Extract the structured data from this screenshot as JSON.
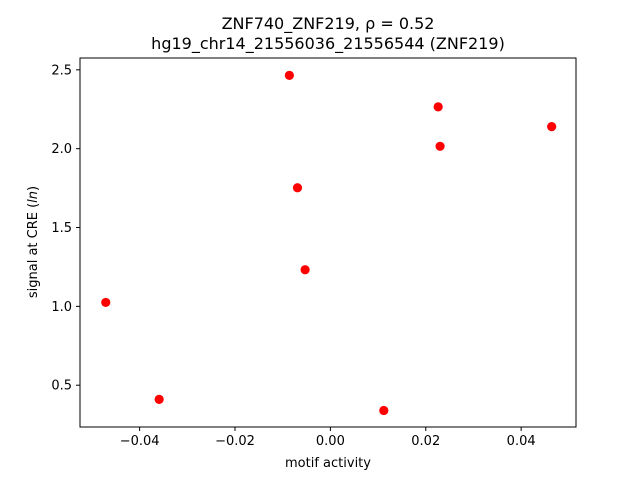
{
  "chart_data": {
    "type": "scatter",
    "title_line1": "ZNF740_ZNF219, ρ = 0.52",
    "title_line2": "hg19_chr14_21556036_21556544 (ZNF219)",
    "xlabel": "motif activity",
    "ylabel": "signal at CRE (ln)",
    "xlim": [
      -0.0525,
      0.0515
    ],
    "ylim": [
      0.235,
      2.575
    ],
    "xticks": [
      -0.04,
      -0.02,
      0.0,
      0.02,
      0.04
    ],
    "xtick_labels": [
      "−0.04",
      "−0.02",
      "0.00",
      "0.02",
      "0.04"
    ],
    "yticks": [
      0.5,
      1.0,
      1.5,
      2.0,
      2.5
    ],
    "ytick_labels": [
      "0.5",
      "1.0",
      "1.5",
      "2.0",
      "2.5"
    ],
    "grid": false,
    "marker_color": "#ff0000",
    "points": [
      {
        "x": -0.0471,
        "y": 1.025
      },
      {
        "x": -0.0359,
        "y": 0.41
      },
      {
        "x": -0.0086,
        "y": 2.465
      },
      {
        "x": -0.0069,
        "y": 1.752
      },
      {
        "x": -0.0053,
        "y": 1.232
      },
      {
        "x": 0.0112,
        "y": 0.34
      },
      {
        "x": 0.0226,
        "y": 2.265
      },
      {
        "x": 0.023,
        "y": 2.015
      },
      {
        "x": 0.0464,
        "y": 2.14
      }
    ]
  }
}
